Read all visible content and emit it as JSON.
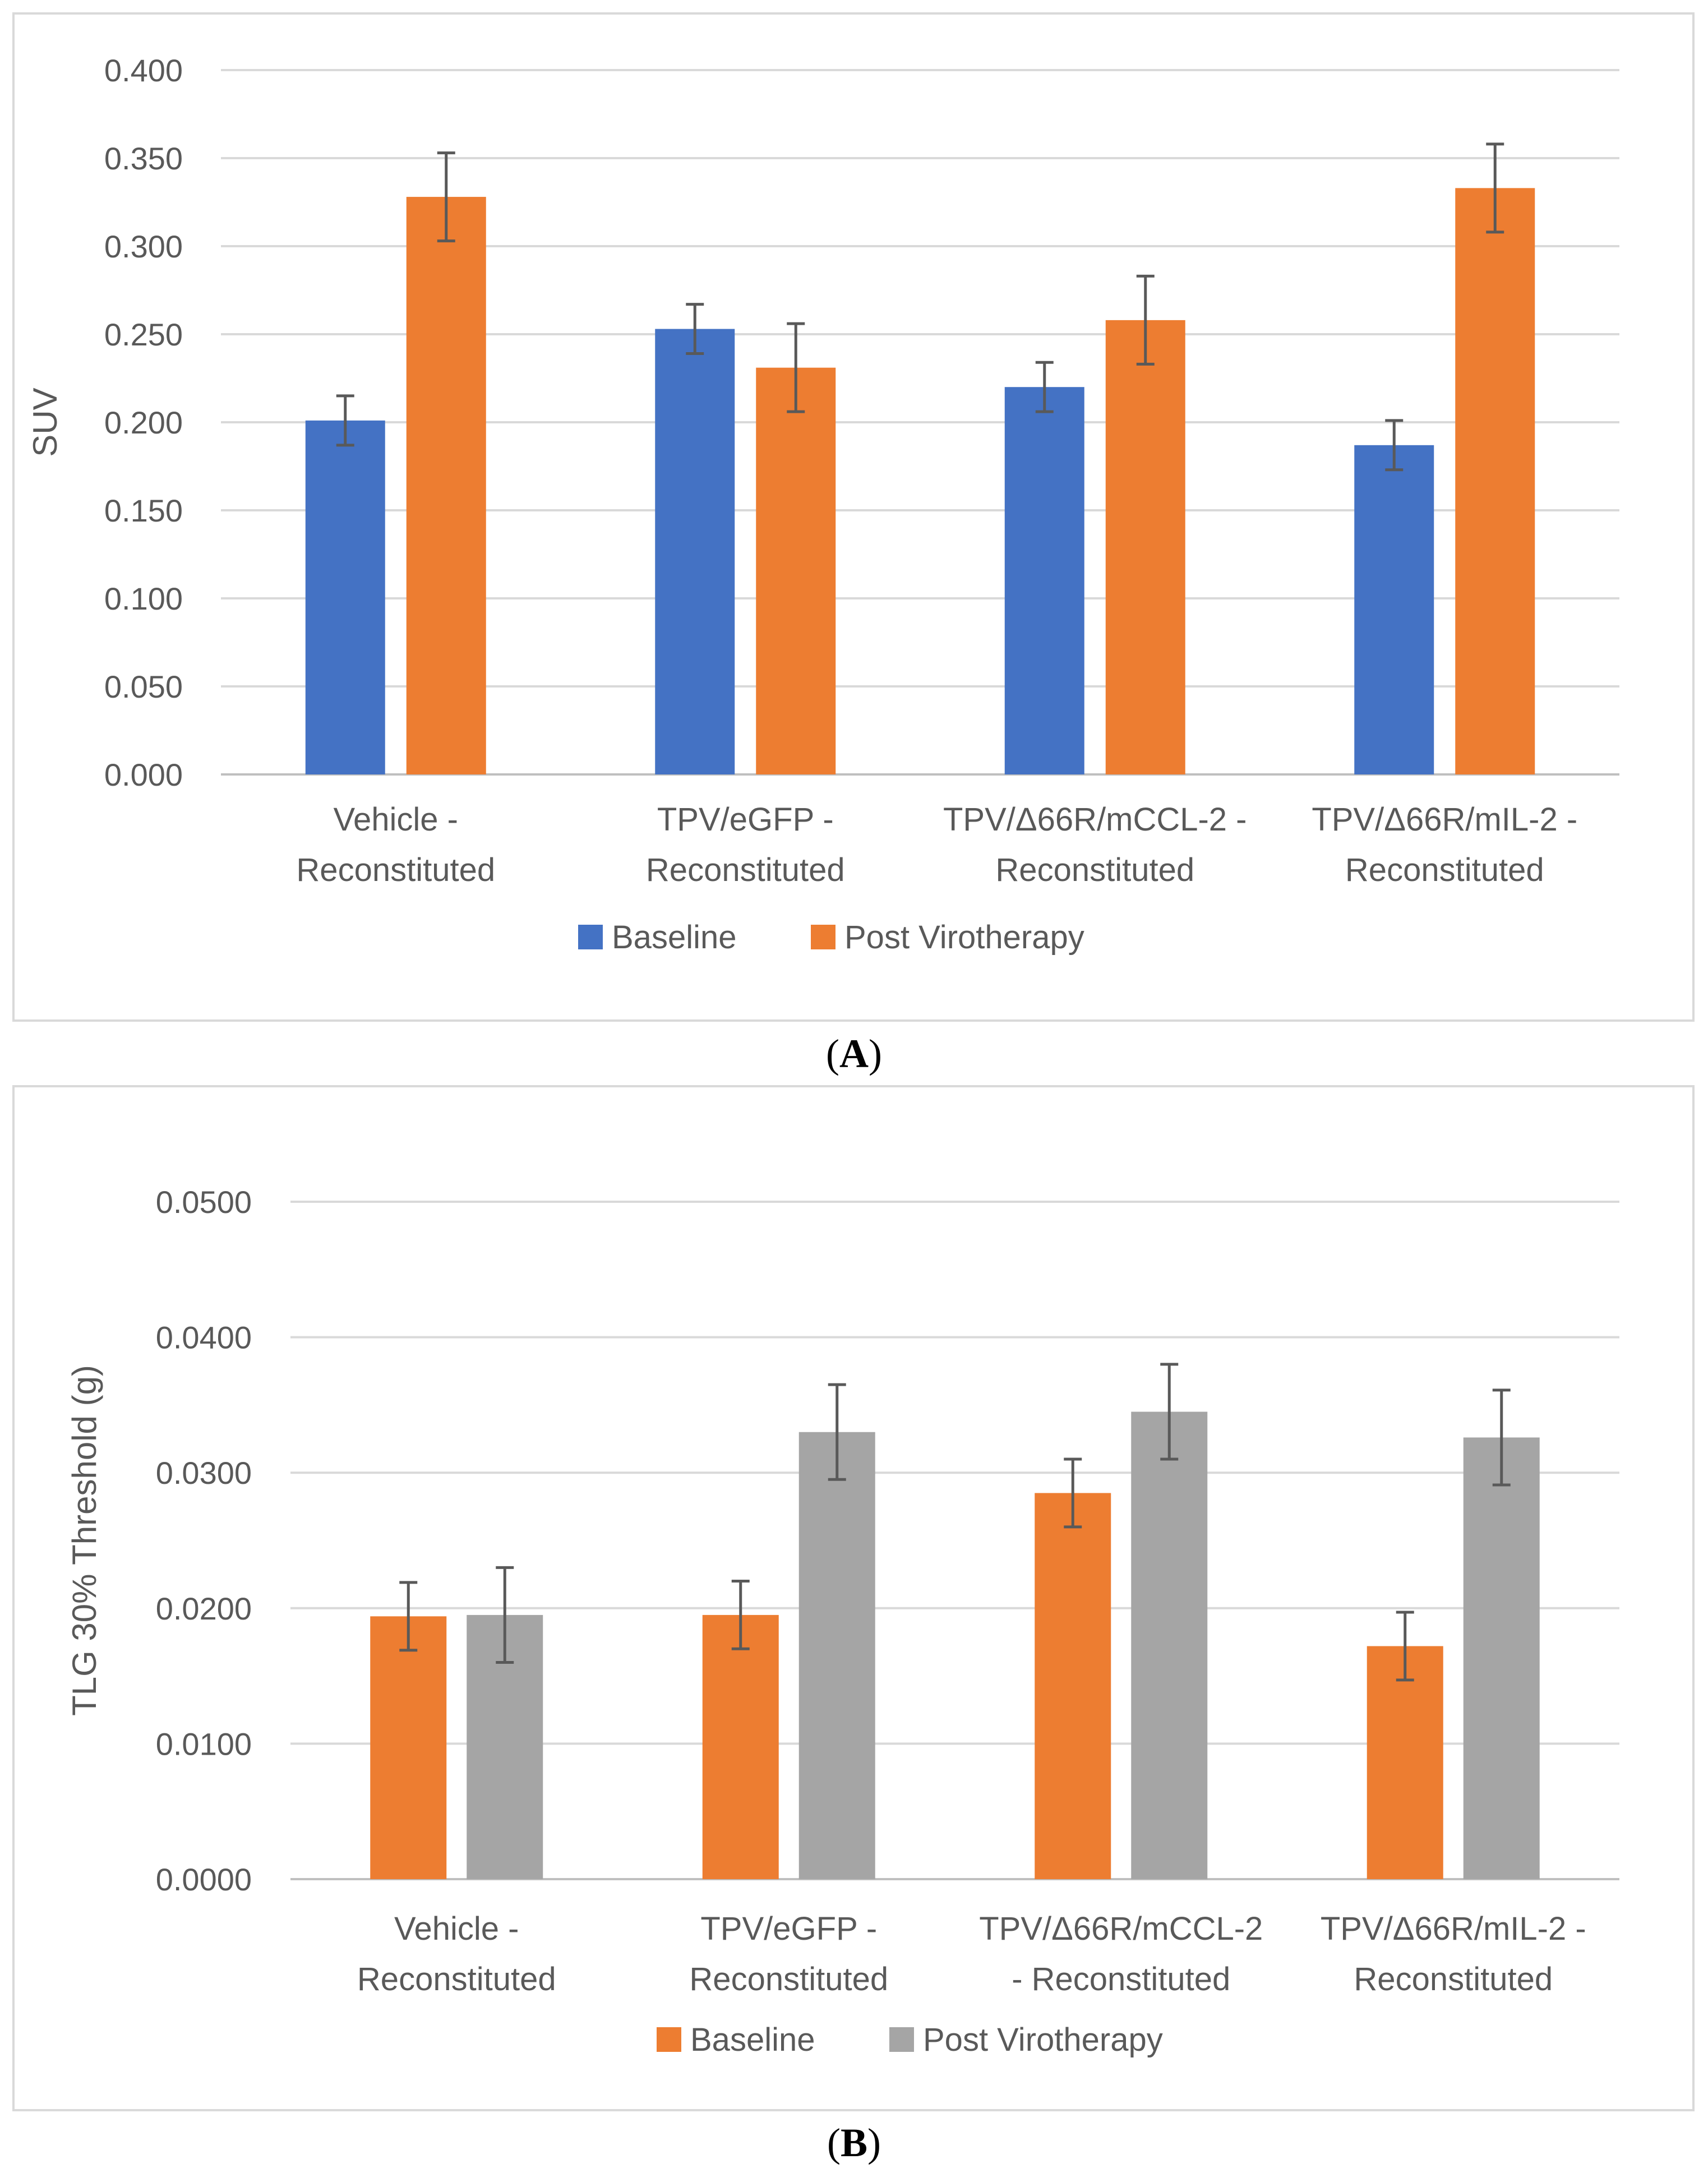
{
  "charts_meta": {
    "captions": [
      "A",
      "B"
    ]
  },
  "chart_data": [
    {
      "type": "bar",
      "panel": "A",
      "ylabel": "SUV",
      "ylim": [
        0,
        0.4
      ],
      "ytick_step": 0.05,
      "ytick_decimals": 3,
      "categories": [
        [
          "Vehicle -",
          "Reconstituted"
        ],
        [
          "TPV/eGFP -",
          "Reconstituted"
        ],
        [
          "TPV/Δ66R/mCCL-2 -",
          "Reconstituted"
        ],
        [
          "TPV/Δ66R/mIL-2 -",
          "Reconstituted"
        ]
      ],
      "series": [
        {
          "name": "Baseline",
          "color": "#4472c4",
          "values": [
            0.201,
            0.253,
            0.22,
            0.187
          ],
          "errors": [
            0.014,
            0.014,
            0.014,
            0.014
          ]
        },
        {
          "name": "Post Virotherapy",
          "color": "#ed7d31",
          "values": [
            0.328,
            0.231,
            0.258,
            0.333
          ],
          "errors": [
            0.025,
            0.025,
            0.025,
            0.025
          ]
        }
      ],
      "legend": "bottom"
    },
    {
      "type": "bar",
      "panel": "B",
      "ylabel": "TLG 30% Threshold  (g)",
      "ylim": [
        0,
        0.05
      ],
      "ytick_step": 0.01,
      "ytick_decimals": 4,
      "categories": [
        [
          "Vehicle -",
          "Reconstituted"
        ],
        [
          "TPV/eGFP -",
          "Reconstituted"
        ],
        [
          "TPV/Δ66R/mCCL-2",
          "- Reconstituted"
        ],
        [
          "TPV/Δ66R/mIL-2 -",
          "Reconstituted"
        ]
      ],
      "series": [
        {
          "name": "Baseline",
          "color": "#ed7d31",
          "values": [
            0.0194,
            0.0195,
            0.0285,
            0.0172
          ],
          "errors": [
            0.0025,
            0.0025,
            0.0025,
            0.0025
          ]
        },
        {
          "name": "Post Virotherapy",
          "color": "#a5a5a5",
          "values": [
            0.0195,
            0.033,
            0.0345,
            0.0326
          ],
          "errors": [
            0.0035,
            0.0035,
            0.0035,
            0.0035
          ]
        }
      ],
      "legend": "bottom"
    }
  ]
}
